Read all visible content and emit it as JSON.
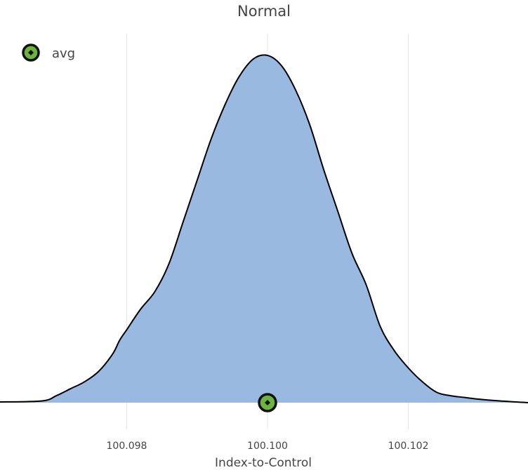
{
  "chart_data": {
    "type": "area",
    "title": "Normal",
    "xlabel": "Index-to-Control",
    "ylabel": "",
    "xlim": [
      100.0962,
      100.1037
    ],
    "ylim": [
      0,
      1
    ],
    "x_ticks": [
      100.098,
      100.1,
      100.102
    ],
    "x_tick_labels": [
      "100.098",
      "100.100",
      "100.102"
    ],
    "grid": {
      "x": true,
      "y": false
    },
    "legend_position": "top-left",
    "series": [
      {
        "x": [
          100.0962,
          100.0968,
          100.097,
          100.0972,
          100.0974,
          100.0976,
          100.0978,
          100.0979,
          100.098,
          100.0982,
          100.0984,
          100.0986,
          100.0988,
          100.099,
          100.0992,
          100.0994,
          100.0996,
          100.0998,
          100.1,
          100.1002,
          100.1004,
          100.1006,
          100.1008,
          100.101,
          100.1012,
          100.1014,
          100.1016,
          100.1018,
          100.102,
          100.1022,
          100.1024,
          100.1026,
          100.1028,
          100.103,
          100.1033,
          100.1037
        ],
        "y": [
          0.002,
          0.005,
          0.02,
          0.04,
          0.06,
          0.09,
          0.14,
          0.18,
          0.21,
          0.27,
          0.32,
          0.4,
          0.52,
          0.64,
          0.76,
          0.86,
          0.94,
          0.99,
          1.0,
          0.97,
          0.9,
          0.8,
          0.67,
          0.55,
          0.43,
          0.34,
          0.22,
          0.15,
          0.1,
          0.06,
          0.03,
          0.02,
          0.015,
          0.01,
          0.005,
          0.0
        ],
        "fill_color": "#99b9e0",
        "line_color": "#000000"
      }
    ],
    "markers": [
      {
        "name": "avg",
        "x": 100.1,
        "y": 0,
        "color": "#6db33f"
      }
    ]
  }
}
